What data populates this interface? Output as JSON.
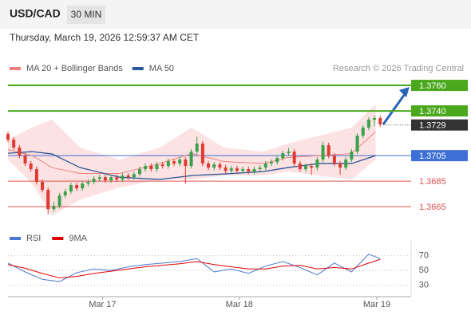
{
  "chart_data": [
    {
      "type": "candlestick",
      "title": "USD/CAD",
      "timeframe": "30 MIN",
      "subtitle": "Thursday, March 19, 2026 12:59:37 AM CET",
      "source": "Research © 2026 Trading Central",
      "up_color": "#3aa14a",
      "down_color": "#e03a30",
      "candles": [
        [
          1.3722,
          1.3724,
          1.37155,
          1.37175
        ],
        [
          1.37175,
          1.37195,
          1.37093,
          1.37113
        ],
        [
          1.37113,
          1.37133,
          1.3703,
          1.3705
        ],
        [
          1.3705,
          1.3707,
          1.36968,
          1.36988
        ],
        [
          1.36988,
          1.37008,
          1.36924,
          1.36944
        ],
        [
          1.36944,
          1.36964,
          1.36824,
          1.36844
        ],
        [
          1.36844,
          1.36864,
          1.36761,
          1.36781
        ],
        [
          1.36781,
          1.36801,
          1.3659,
          1.36631
        ],
        [
          1.36631,
          1.3669,
          1.36611,
          1.36656
        ],
        [
          1.36656,
          1.36758,
          1.36636,
          1.36738
        ],
        [
          1.36738,
          1.36789,
          1.36718,
          1.36769
        ],
        [
          1.36769,
          1.36839,
          1.36749,
          1.36819
        ],
        [
          1.36819,
          1.36839,
          1.36774,
          1.36794
        ],
        [
          1.36794,
          1.36851,
          1.36774,
          1.36831
        ],
        [
          1.36831,
          1.36864,
          1.36811,
          1.36844
        ],
        [
          1.36844,
          1.36889,
          1.36824,
          1.36869
        ],
        [
          1.36869,
          1.36901,
          1.36849,
          1.36881
        ],
        [
          1.36881,
          1.36901,
          1.36836,
          1.36856
        ],
        [
          1.36856,
          1.36901,
          1.36836,
          1.36881
        ],
        [
          1.36881,
          1.36901,
          1.36843,
          1.36863
        ],
        [
          1.36863,
          1.36914,
          1.36843,
          1.36894
        ],
        [
          1.36894,
          1.36914,
          1.36861,
          1.36881
        ],
        [
          1.36881,
          1.36926,
          1.36861,
          1.36906
        ],
        [
          1.36906,
          1.36964,
          1.36886,
          1.36944
        ],
        [
          1.36944,
          1.36989,
          1.36924,
          1.36969
        ],
        [
          1.36969,
          1.36989,
          1.36924,
          1.36944
        ],
        [
          1.36944,
          1.37001,
          1.36924,
          1.36981
        ],
        [
          1.36981,
          1.37001,
          1.36949,
          1.36969
        ],
        [
          1.36969,
          1.37026,
          1.36949,
          1.37006
        ],
        [
          1.37006,
          1.37026,
          1.36968,
          1.36988
        ],
        [
          1.36988,
          1.37039,
          1.36968,
          1.37019
        ],
        [
          1.37019,
          1.37039,
          1.3683,
          1.36969
        ],
        [
          1.36969,
          1.37101,
          1.36949,
          1.37081
        ],
        [
          1.37081,
          1.372,
          1.37061,
          1.37144
        ],
        [
          1.37144,
          1.37164,
          1.36968,
          1.36988
        ],
        [
          1.36988,
          1.37008,
          1.36936,
          1.36956
        ],
        [
          1.36956,
          1.37001,
          1.36936,
          1.36981
        ],
        [
          1.36981,
          1.37001,
          1.36936,
          1.36956
        ],
        [
          1.36956,
          1.36976,
          1.36911,
          1.36931
        ],
        [
          1.36931,
          1.3697,
          1.36911,
          1.3695
        ],
        [
          1.3695,
          1.3697,
          1.36911,
          1.36931
        ],
        [
          1.36931,
          1.36964,
          1.36911,
          1.36944
        ],
        [
          1.36944,
          1.36964,
          1.36905,
          1.36925
        ],
        [
          1.36925,
          1.36964,
          1.36905,
          1.36944
        ],
        [
          1.36944,
          1.36976,
          1.36924,
          1.36956
        ],
        [
          1.36956,
          1.37008,
          1.36936,
          1.36988
        ],
        [
          1.36988,
          1.3702,
          1.36968,
          1.37
        ],
        [
          1.37,
          1.37051,
          1.3698,
          1.37031
        ],
        [
          1.37031,
          1.37089,
          1.37011,
          1.37069
        ],
        [
          1.37069,
          1.3711,
          1.37049,
          1.37081
        ],
        [
          1.37081,
          1.37101,
          1.36968,
          1.36988
        ],
        [
          1.36988,
          1.37008,
          1.36924,
          1.36944
        ],
        [
          1.36944,
          1.36989,
          1.36924,
          1.36969
        ],
        [
          1.36969,
          1.36989,
          1.369,
          1.36956
        ],
        [
          1.36956,
          1.37039,
          1.36936,
          1.37019
        ],
        [
          1.37019,
          1.3716,
          1.36999,
          1.37131
        ],
        [
          1.37131,
          1.37151,
          1.3703,
          1.3705
        ],
        [
          1.3705,
          1.3707,
          1.36968,
          1.36988
        ],
        [
          1.36988,
          1.37008,
          1.369,
          1.36956
        ],
        [
          1.36956,
          1.37039,
          1.36936,
          1.37019
        ],
        [
          1.37019,
          1.37101,
          1.36999,
          1.37081
        ],
        [
          1.37081,
          1.37226,
          1.37061,
          1.37206
        ],
        [
          1.37206,
          1.37289,
          1.37186,
          1.37269
        ],
        [
          1.37269,
          1.37351,
          1.37249,
          1.37331
        ],
        [
          1.37331,
          1.37364,
          1.3728,
          1.37344
        ],
        [
          1.37344,
          1.37364,
          1.37274,
          1.37294
        ]
      ],
      "overlays": [
        {
          "name": "MA 20 + Bollinger Bands",
          "color": "#f08080",
          "band_color": "#fbd5d5",
          "x": [
            0,
            4.2,
            7.7,
            12.6,
            19.5,
            26.5,
            32.1,
            37.7,
            44.6,
            48.8,
            54.4,
            60,
            64.2
          ],
          "values": [
            1.37097,
            1.3705,
            1.36956,
            1.3691,
            1.3691,
            1.36988,
            1.37066,
            1.37004,
            1.36988,
            1.37035,
            1.3705,
            1.37066,
            1.37238
          ],
          "upper": [
            1.37175,
            1.37269,
            1.37331,
            1.37113,
            1.37019,
            1.37113,
            1.37269,
            1.37113,
            1.37081,
            1.37144,
            1.37206,
            1.37269,
            1.37456
          ],
          "lower": [
            1.37019,
            1.36831,
            1.36581,
            1.36706,
            1.368,
            1.36863,
            1.36863,
            1.36894,
            1.36894,
            1.36925,
            1.36894,
            1.36863,
            1.37019
          ]
        },
        {
          "name": "MA 50",
          "color": "#2b5797",
          "x": [
            0,
            4.2,
            7.7,
            12.6,
            19.5,
            26.5,
            32.1,
            37.7,
            44.6,
            48.8,
            54.4,
            60,
            64.2
          ],
          "values": [
            1.37069,
            1.37081,
            1.37063,
            1.36956,
            1.36881,
            1.36863,
            1.36894,
            1.36906,
            1.36925,
            1.36956,
            1.36988,
            1.36988,
            1.3705
          ]
        }
      ],
      "levels": [
        {
          "value": 1.376,
          "label": "1.3760",
          "color": "#4aa81c",
          "style": "box"
        },
        {
          "value": 1.374,
          "label": "1.3740",
          "color": "#4aa81c",
          "style": "box"
        },
        {
          "value": 1.3729,
          "color": "#333333",
          "style": "current"
        },
        {
          "value": 1.3705,
          "color": "#3d6fd6",
          "style": "box"
        },
        {
          "value": 1.3685,
          "color": "#e05050",
          "style": "text"
        },
        {
          "value": 1.3665,
          "color": "#e05050",
          "style": "text"
        }
      ],
      "xlim": [
        0,
        70.4
      ],
      "ylim": [
        1.3652,
        1.3805
      ],
      "xticks": [
        {
          "value": 16.5,
          "label": "Mar 17"
        },
        {
          "value": 40.4,
          "label": "Mar 18"
        },
        {
          "value": 64.4,
          "label": "Mar 19"
        }
      ]
    },
    {
      "type": "line",
      "xlim": [
        0,
        70.4
      ],
      "ylim": [
        20,
        90
      ],
      "yticks": [
        30,
        50,
        70
      ],
      "series": [
        {
          "name": "RSI",
          "color": "#4a78d0",
          "x": [
            0,
            3,
            6,
            9,
            12,
            15,
            18,
            21,
            24,
            27,
            30,
            33,
            36,
            39,
            42,
            45,
            48,
            51,
            54,
            57,
            60,
            63,
            65
          ],
          "values": [
            60,
            48,
            38,
            35,
            47,
            52,
            50,
            55,
            58,
            60,
            62,
            66,
            48,
            52,
            46,
            56,
            62,
            54,
            44,
            60,
            48,
            72,
            66
          ]
        },
        {
          "name": "9MA",
          "color": "#e00000",
          "x": [
            0,
            3,
            6,
            9,
            12,
            15,
            18,
            21,
            24,
            27,
            30,
            33,
            36,
            39,
            42,
            45,
            48,
            51,
            54,
            57,
            60,
            63,
            65
          ],
          "values": [
            58,
            53,
            46,
            40,
            42,
            46,
            49,
            52,
            55,
            57,
            59,
            62,
            58,
            55,
            52,
            52,
            56,
            57,
            52,
            54,
            52,
            60,
            65
          ]
        }
      ]
    }
  ]
}
